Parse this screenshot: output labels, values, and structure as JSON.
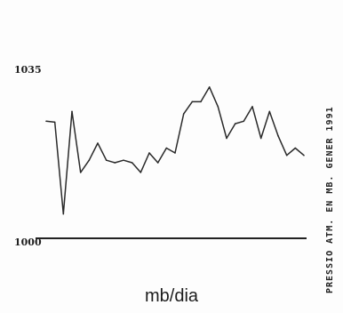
{
  "chart_data": {
    "type": "line",
    "ylim": [
      1000,
      1035
    ],
    "y_ticks": [
      "1035",
      "1000"
    ],
    "xlabel": "mb/dia",
    "ylabel": "PRESSIO ATM. EN MB. GENER 1991",
    "series": [
      {
        "values": [
          1024,
          1023.8,
          1005,
          1026,
          1013.5,
          1016,
          1019.5,
          1016,
          1015.5,
          1016,
          1015.5,
          1013.5,
          1017.5,
          1015.5,
          1018.5,
          1017.5,
          1025.5,
          1028,
          1028,
          1031,
          1027,
          1020.5,
          1023.5,
          1024,
          1027,
          1020.5,
          1026,
          1021,
          1017,
          1018.5,
          1017
        ]
      }
    ]
  }
}
